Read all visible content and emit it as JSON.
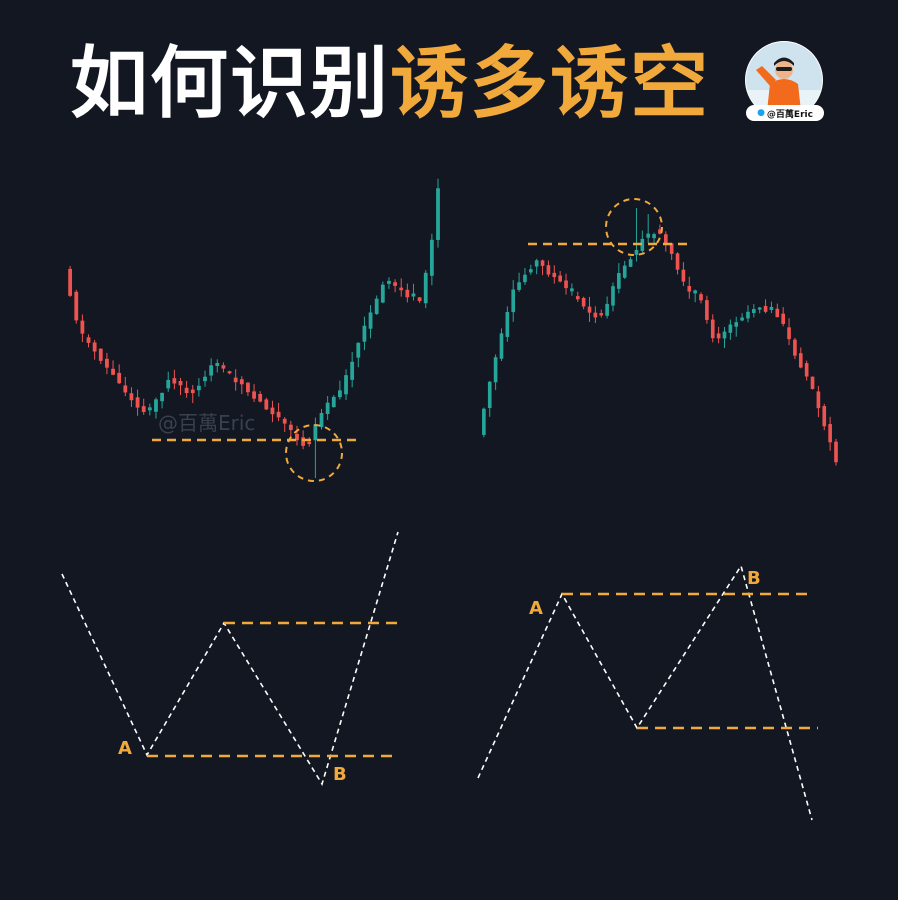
{
  "title": {
    "part1": "如何识别",
    "part2": "诱多诱空"
  },
  "avatar": {
    "handle": "@百萬Eric"
  },
  "watermark": "@百萬Eric",
  "diagram_labels": {
    "left_a": "A",
    "left_b": "B",
    "right_a": "A",
    "right_b": "B"
  },
  "colors": {
    "background": "#121722",
    "accent": "#f2a93b",
    "bull": "#26a69a",
    "bear": "#ef5350",
    "line": "#ffffff"
  }
}
